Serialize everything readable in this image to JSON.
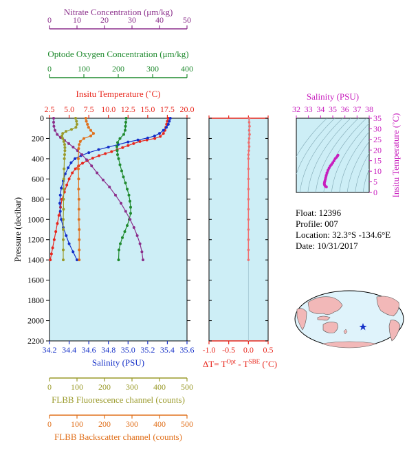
{
  "colors": {
    "nitrate": "#8b2f8b",
    "oxygen": "#1f8a2e",
    "temperature": "#e8261c",
    "salinity": "#1530c8",
    "fluorescence": "#9a9a2a",
    "backscatter": "#e0701c",
    "ts_axis": "#c81fbe",
    "panel_bg": "#cdeef6",
    "dt_line": "#f07070"
  },
  "info": {
    "float": "Float:  12396",
    "profile": "Profile:  007",
    "location": "Location:  32.3°S  -134.6°E",
    "date": "Date:  10/31/2017"
  },
  "chart_data": [
    {
      "type": "line",
      "panel": "main-profile",
      "ylabel": "Pressure (decibar)",
      "ylim": [
        2200,
        0
      ],
      "yticks": [
        0,
        200,
        400,
        600,
        800,
        1000,
        1200,
        1400,
        1600,
        1800,
        2000,
        2200
      ],
      "grid": false,
      "axes": [
        {
          "key": "nitrate",
          "label": "Nitrate Concentration (μm/kg)",
          "position": "top-1",
          "range": [
            0,
            50
          ],
          "ticks": [
            "0",
            "10",
            "20",
            "30",
            "40",
            "50"
          ]
        },
        {
          "key": "oxygen",
          "label": "Optode Oxygen Concentration (μm/kg)",
          "position": "top-2",
          "range": [
            0,
            400
          ],
          "ticks": [
            "0",
            "100",
            "200",
            "300",
            "400"
          ]
        },
        {
          "key": "temperature",
          "label": "Insitu Temperature (˚C)",
          "position": "top-3",
          "range": [
            2.5,
            20.0
          ],
          "ticks": [
            "2.5",
            "5.0",
            "7.5",
            "10.0",
            "12.5",
            "15.0",
            "17.5",
            "20.0"
          ]
        },
        {
          "key": "salinity",
          "label": "Salinity (PSU)",
          "position": "bottom-1",
          "range": [
            34.2,
            35.6
          ],
          "ticks": [
            "34.2",
            "34.4",
            "34.6",
            "34.8",
            "35.0",
            "35.2",
            "35.4",
            "35.6"
          ]
        },
        {
          "key": "fluorescence",
          "label": "FLBB Fluorescence channel (counts)",
          "position": "bottom-2",
          "range": [
            0,
            500
          ],
          "ticks": [
            "0",
            "100",
            "200",
            "300",
            "400",
            "500"
          ]
        },
        {
          "key": "backscatter",
          "label": "FLBB Backscatter channel (counts)",
          "position": "bottom-3",
          "range": [
            0,
            500
          ],
          "ticks": [
            "0",
            "100",
            "200",
            "300",
            "400",
            "500"
          ]
        }
      ],
      "series": [
        {
          "key": "temperature",
          "points": [
            [
              17.6,
              0
            ],
            [
              17.5,
              30
            ],
            [
              17.4,
              60
            ],
            [
              17.3,
              90
            ],
            [
              17.2,
              120
            ],
            [
              17.0,
              150
            ],
            [
              16.6,
              180
            ],
            [
              15.9,
              200
            ],
            [
              14.9,
              215
            ],
            [
              14.0,
              230
            ],
            [
              13.2,
              250
            ],
            [
              12.5,
              270
            ],
            [
              11.8,
              290
            ],
            [
              11.1,
              310
            ],
            [
              10.4,
              330
            ],
            [
              9.6,
              350
            ],
            [
              8.8,
              370
            ],
            [
              8.0,
              395
            ],
            [
              7.3,
              420
            ],
            [
              6.7,
              445
            ],
            [
              6.2,
              470
            ],
            [
              5.8,
              500
            ],
            [
              5.4,
              540
            ],
            [
              5.0,
              600
            ],
            [
              4.7,
              660
            ],
            [
              4.4,
              730
            ],
            [
              4.1,
              800
            ],
            [
              3.9,
              880
            ],
            [
              3.7,
              960
            ],
            [
              3.5,
              1040
            ],
            [
              3.3,
              1120
            ],
            [
              3.1,
              1200
            ],
            [
              2.9,
              1280
            ],
            [
              2.75,
              1340
            ],
            [
              2.6,
              1400
            ]
          ]
        },
        {
          "key": "salinity",
          "points": [
            [
              35.43,
              0
            ],
            [
              35.42,
              30
            ],
            [
              35.41,
              60
            ],
            [
              35.39,
              90
            ],
            [
              35.36,
              120
            ],
            [
              35.32,
              150
            ],
            [
              35.27,
              175
            ],
            [
              35.2,
              195
            ],
            [
              35.1,
              215
            ],
            [
              35.0,
              235
            ],
            [
              34.9,
              260
            ],
            [
              34.8,
              285
            ],
            [
              34.7,
              310
            ],
            [
              34.6,
              340
            ],
            [
              34.52,
              370
            ],
            [
              34.46,
              400
            ],
            [
              34.42,
              440
            ],
            [
              34.39,
              490
            ],
            [
              34.36,
              550
            ],
            [
              34.34,
              620
            ],
            [
              34.32,
              690
            ],
            [
              34.31,
              760
            ],
            [
              34.305,
              840
            ],
            [
              34.31,
              920
            ],
            [
              34.32,
              1000
            ],
            [
              34.34,
              1080
            ],
            [
              34.37,
              1160
            ],
            [
              34.4,
              1240
            ],
            [
              34.44,
              1320
            ],
            [
              34.48,
              1400
            ]
          ]
        },
        {
          "key": "oxygen",
          "points": [
            [
              223,
              0
            ],
            [
              222,
              40
            ],
            [
              221,
              80
            ],
            [
              220,
              120
            ],
            [
              216,
              160
            ],
            [
              205,
              200
            ],
            [
              198,
              240
            ],
            [
              196,
              280
            ],
            [
              197,
              320
            ],
            [
              198,
              360
            ],
            [
              201,
              400
            ],
            [
              205,
              460
            ],
            [
              210,
              520
            ],
            [
              215,
              580
            ],
            [
              221,
              640
            ],
            [
              226,
              700
            ],
            [
              231,
              760
            ],
            [
              234,
              820
            ],
            [
              236,
              880
            ],
            [
              236,
              940
            ],
            [
              232,
              1000
            ],
            [
              226,
              1060
            ],
            [
              219,
              1120
            ],
            [
              212,
              1180
            ],
            [
              206,
              1240
            ],
            [
              202,
              1300
            ],
            [
              201,
              1400
            ]
          ]
        },
        {
          "key": "nitrate",
          "points": [
            [
              1.5,
              0
            ],
            [
              1.5,
              40
            ],
            [
              1.6,
              80
            ],
            [
              2.0,
              120
            ],
            [
              2.8,
              160
            ],
            [
              4.0,
              190
            ],
            [
              5.5,
              220
            ],
            [
              7.0,
              250
            ],
            [
              8.6,
              285
            ],
            [
              10.2,
              320
            ],
            [
              11.8,
              360
            ],
            [
              13.5,
              410
            ],
            [
              15.3,
              470
            ],
            [
              17.3,
              540
            ],
            [
              19.5,
              610
            ],
            [
              21.8,
              680
            ],
            [
              24.0,
              760
            ],
            [
              26.0,
              840
            ],
            [
              27.7,
              920
            ],
            [
              29.3,
              1000
            ],
            [
              30.7,
              1080
            ],
            [
              31.9,
              1160
            ],
            [
              32.9,
              1240
            ],
            [
              33.6,
              1320
            ],
            [
              34.0,
              1400
            ]
          ]
        },
        {
          "key": "fluorescence",
          "points": [
            [
              95,
              0
            ],
            [
              98,
              30
            ],
            [
              100,
              60
            ],
            [
              96,
              90
            ],
            [
              80,
              110
            ],
            [
              60,
              130
            ],
            [
              48,
              150
            ],
            [
              45,
              175
            ],
            [
              48,
              200
            ],
            [
              52,
              230
            ],
            [
              55,
              260
            ],
            [
              56,
              290
            ],
            [
              56,
              320
            ],
            [
              55,
              360
            ],
            [
              54,
              400
            ],
            [
              53,
              500
            ],
            [
              52,
              600
            ],
            [
              52,
              700
            ],
            [
              51,
              800
            ],
            [
              51,
              900
            ],
            [
              50,
              1000
            ],
            [
              50,
              1100
            ],
            [
              50,
              1200
            ],
            [
              50,
              1300
            ],
            [
              50,
              1400
            ]
          ]
        },
        {
          "key": "backscatter",
          "points": [
            [
              132,
              0
            ],
            [
              134,
              30
            ],
            [
              138,
              60
            ],
            [
              142,
              90
            ],
            [
              150,
              120
            ],
            [
              160,
              150
            ],
            [
              150,
              175
            ],
            [
              125,
              200
            ],
            [
              112,
              230
            ],
            [
              108,
              260
            ],
            [
              106,
              300
            ],
            [
              105,
              400
            ],
            [
              105,
              500
            ],
            [
              106,
              600
            ],
            [
              106,
              700
            ],
            [
              107,
              800
            ],
            [
              107,
              900
            ],
            [
              107,
              1000
            ],
            [
              108,
              1100
            ],
            [
              108,
              1200
            ],
            [
              108,
              1300
            ],
            [
              108,
              1400
            ]
          ]
        }
      ]
    },
    {
      "type": "line",
      "panel": "delta-t",
      "xlabel": "ΔT= T",
      "xlabel_sup1": "Opt",
      "xlabel_mid": " - T",
      "xlabel_sup2": "SBE",
      "xlabel_end": " (˚C)",
      "xlim": [
        -1.0,
        0.5
      ],
      "xticks": [
        "-1.0",
        "-0.5",
        "0.0",
        "0.5"
      ],
      "ylim": [
        2200,
        0
      ],
      "points": [
        [
          0.02,
          0
        ],
        [
          0.02,
          40
        ],
        [
          0.03,
          80
        ],
        [
          0.02,
          120
        ],
        [
          0.03,
          160
        ],
        [
          0.02,
          200
        ],
        [
          0.01,
          240
        ],
        [
          0.02,
          280
        ],
        [
          0.01,
          320
        ],
        [
          0.0,
          360
        ],
        [
          0.0,
          400
        ],
        [
          0.0,
          500
        ],
        [
          0.0,
          600
        ],
        [
          0.0,
          700
        ],
        [
          0.0,
          800
        ],
        [
          0.0,
          900
        ],
        [
          0.0,
          1000
        ],
        [
          0.0,
          1100
        ],
        [
          0.0,
          1200
        ],
        [
          0.0,
          1300
        ],
        [
          0.0,
          1400
        ]
      ]
    },
    {
      "type": "scatter",
      "panel": "t-s-diagram",
      "title": "Salinity (PSU)",
      "ylabel": "Insitu Temperature (˚C)",
      "xlim": [
        32,
        38
      ],
      "ylim": [
        0,
        35
      ],
      "xticks": [
        "32",
        "33",
        "34",
        "35",
        "36",
        "37",
        "38"
      ],
      "yticks": [
        "0",
        "5",
        "10",
        "15",
        "20",
        "25",
        "30",
        "35"
      ],
      "points": [
        [
          35.43,
          17.6
        ],
        [
          35.4,
          17.3
        ],
        [
          35.32,
          16.6
        ],
        [
          35.2,
          15.9
        ],
        [
          35.1,
          14.9
        ],
        [
          35.0,
          14.0
        ],
        [
          34.9,
          13.2
        ],
        [
          34.8,
          12.5
        ],
        [
          34.7,
          11.5
        ],
        [
          34.6,
          10.4
        ],
        [
          34.52,
          9.2
        ],
        [
          34.46,
          8.0
        ],
        [
          34.42,
          7.0
        ],
        [
          34.39,
          6.2
        ],
        [
          34.36,
          5.5
        ],
        [
          34.33,
          5.0
        ],
        [
          34.31,
          4.4
        ],
        [
          34.305,
          4.0
        ],
        [
          34.32,
          3.6
        ],
        [
          34.36,
          3.2
        ],
        [
          34.42,
          2.8
        ],
        [
          34.48,
          2.6
        ]
      ]
    }
  ]
}
